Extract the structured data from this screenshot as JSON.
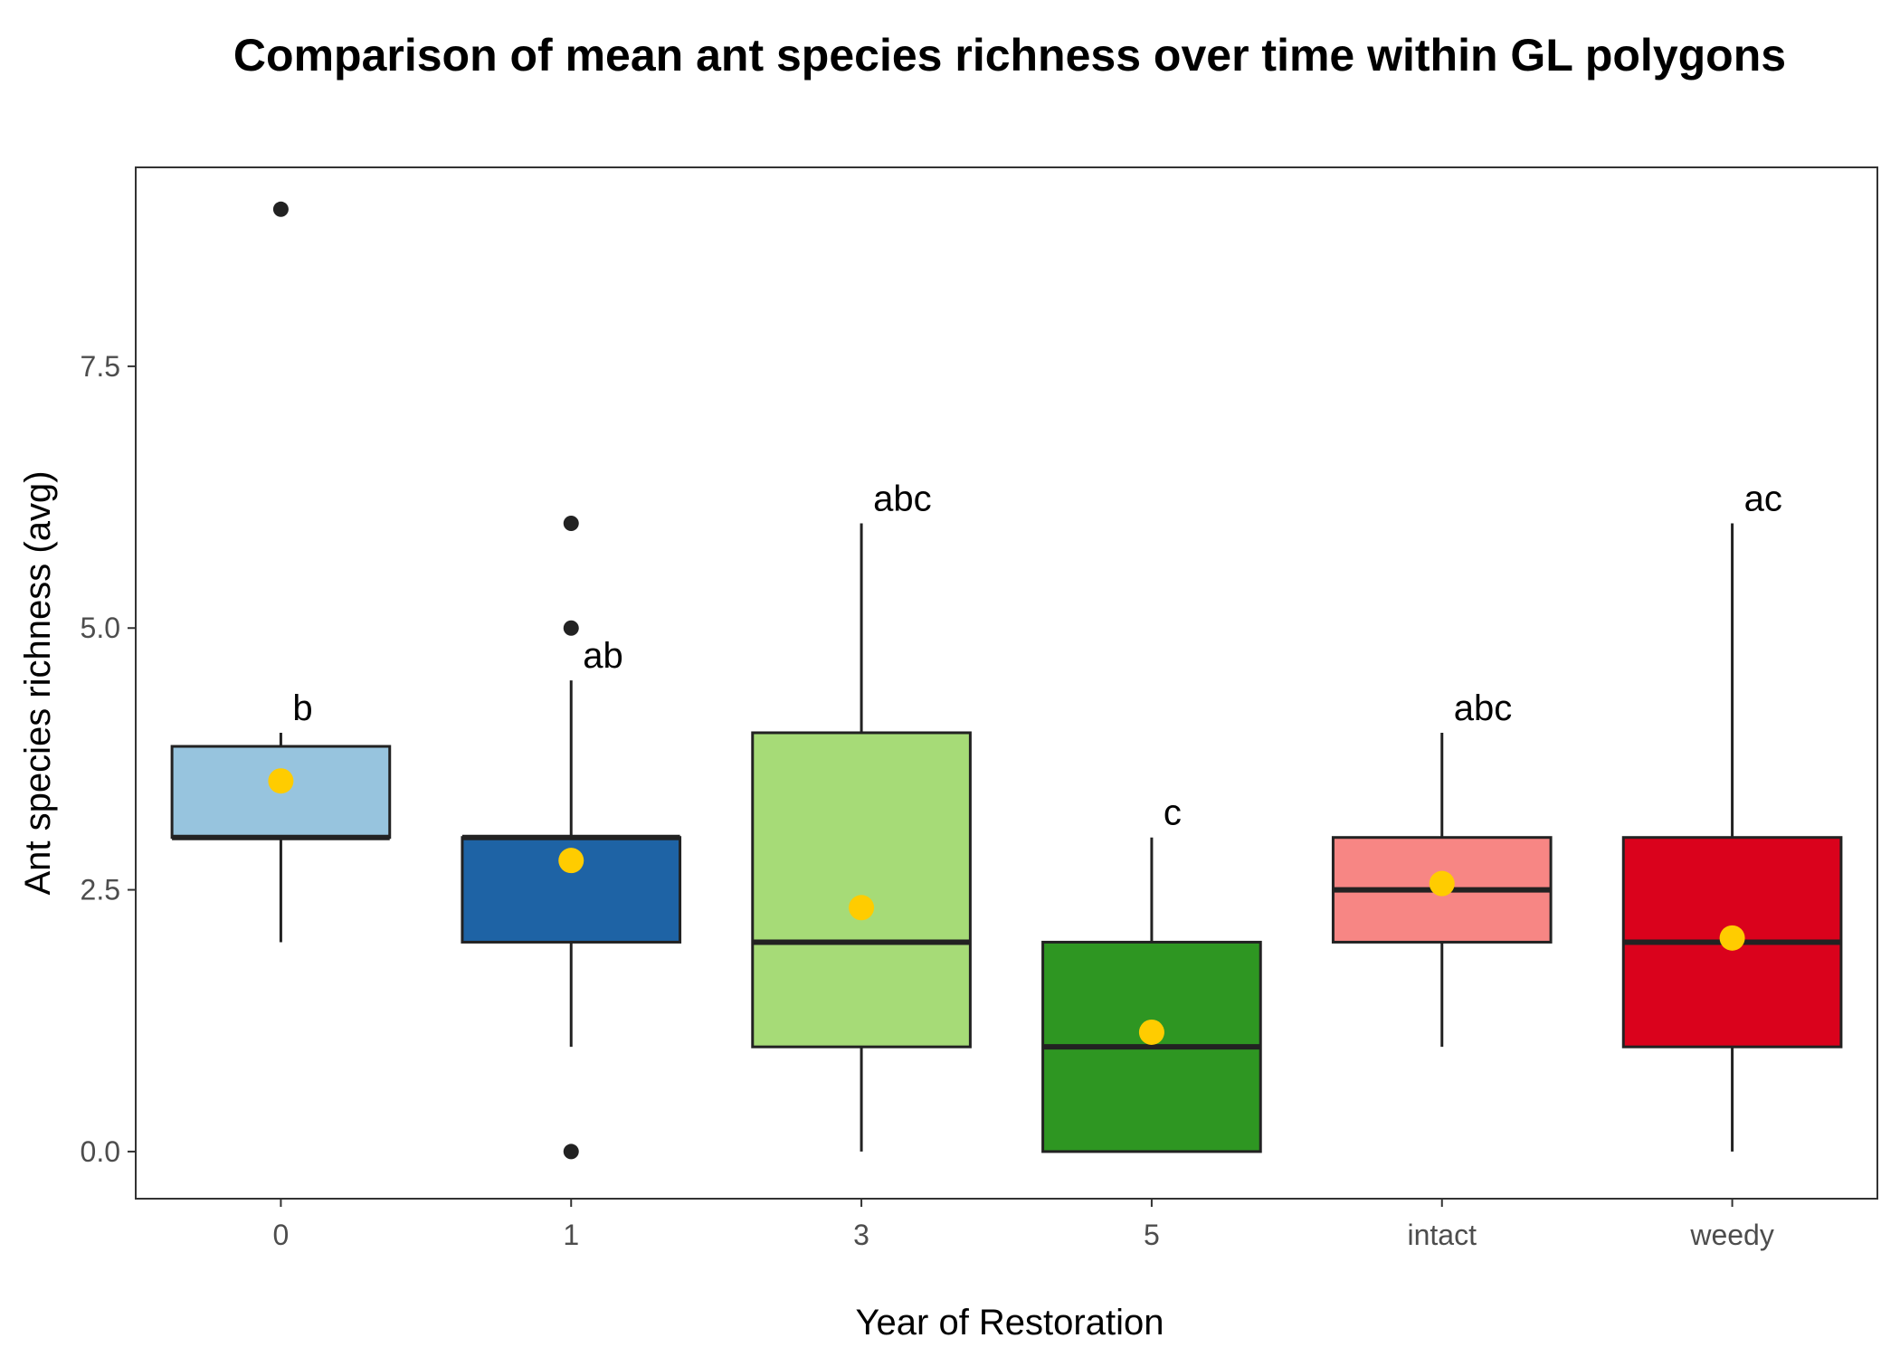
{
  "chart_data": {
    "type": "box",
    "title": "Comparison of mean ant species richness over time within GL polygons",
    "xlabel": "Year of Restoration",
    "ylabel": "Ant species richness (avg)",
    "ylim": [
      -0.45,
      9.4
    ],
    "yticks": [
      0.0,
      2.5,
      5.0,
      7.5
    ],
    "ytick_labels": [
      "0.0",
      "2.5",
      "5.0",
      "7.5"
    ],
    "grid": false,
    "legend": "none",
    "mean_marker_color": "#FFCC00",
    "categories": [
      "0",
      "1",
      "3",
      "5",
      "intact",
      "weedy"
    ],
    "groups": [
      {
        "category": "0",
        "whisker_low": 2,
        "q1": 3,
        "median": 3,
        "q3": 3.87,
        "whisker_high": 4,
        "mean": 3.54,
        "outliers": [
          9
        ],
        "letter": "b",
        "fill": "#97C4DE"
      },
      {
        "category": "1",
        "whisker_low": 1,
        "q1": 2,
        "median": 3,
        "q3": 3,
        "whisker_high": 4.5,
        "mean": 2.78,
        "outliers": [
          6,
          5,
          0
        ],
        "letter": "ab",
        "fill": "#1E63A5"
      },
      {
        "category": "3",
        "whisker_low": 0,
        "q1": 1,
        "median": 2,
        "q3": 4,
        "whisker_high": 6,
        "mean": 2.33,
        "outliers": [],
        "letter": "abc",
        "fill": "#A6DB77"
      },
      {
        "category": "5",
        "whisker_low": 0,
        "q1": 0,
        "median": 1,
        "q3": 2,
        "whisker_high": 3,
        "mean": 1.14,
        "outliers": [],
        "letter": "c",
        "fill": "#2E9622"
      },
      {
        "category": "intact",
        "whisker_low": 1,
        "q1": 2,
        "median": 2.5,
        "q3": 3,
        "whisker_high": 4,
        "mean": 2.56,
        "outliers": [],
        "letter": "abc",
        "fill": "#F78684"
      },
      {
        "category": "weedy",
        "whisker_low": 0,
        "q1": 1,
        "median": 2,
        "q3": 3,
        "whisker_high": 6,
        "mean": 2.04,
        "outliers": [],
        "letter": "ac",
        "fill": "#DA021C"
      }
    ]
  }
}
